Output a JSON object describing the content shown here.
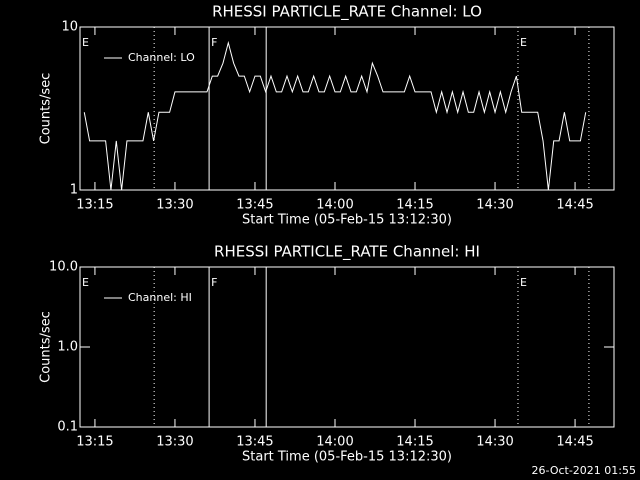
{
  "chart_data": [
    {
      "type": "line",
      "title": "RHESSI PARTICLE_RATE Channel: LO",
      "xlabel": "Start Time (05-Feb-15 13:12:30)",
      "ylabel": "Counts/sec",
      "log_y": true,
      "ylim": [
        1,
        10
      ],
      "yticks": [
        1,
        10
      ],
      "xlim": [
        792.2,
        892.3
      ],
      "xticks": [
        {
          "value": 795,
          "label": "13:15"
        },
        {
          "value": 810,
          "label": "13:30"
        },
        {
          "value": 825,
          "label": "13:45"
        },
        {
          "value": 840,
          "label": "14:00"
        },
        {
          "value": 855,
          "label": "14:15"
        },
        {
          "value": 870,
          "label": "14:30"
        },
        {
          "value": 885,
          "label": "14:45"
        }
      ],
      "legend": "upper left",
      "vlines": [
        {
          "x": 806.1,
          "style": "dotted"
        },
        {
          "x": 816.4,
          "style": "solid"
        },
        {
          "x": 827.1,
          "style": "solid"
        },
        {
          "x": 874.3,
          "style": "dotted"
        },
        {
          "x": 887.6,
          "style": "dotted"
        }
      ],
      "annotations": [
        {
          "text": "E",
          "x": 792.2
        },
        {
          "text": "F",
          "x": 816.4
        },
        {
          "text": "E",
          "x": 874.3
        }
      ],
      "series": [
        {
          "name": "Channel: LO",
          "color": "#ffffff",
          "x": [
            793,
            794,
            795,
            796,
            797,
            798,
            799,
            800,
            801,
            802,
            803,
            804,
            805,
            806,
            807,
            808,
            809,
            810,
            811,
            812,
            813,
            814,
            815,
            816,
            817,
            818,
            819,
            820,
            821,
            822,
            823,
            824,
            825,
            826,
            827,
            828,
            829,
            830,
            831,
            832,
            833,
            834,
            835,
            836,
            837,
            838,
            839,
            840,
            841,
            842,
            843,
            844,
            845,
            846,
            847,
            848,
            849,
            850,
            851,
            852,
            853,
            854,
            855,
            856,
            857,
            858,
            859,
            860,
            861,
            862,
            863,
            864,
            865,
            866,
            867,
            868,
            869,
            870,
            871,
            872,
            873,
            874,
            875,
            876,
            877,
            878,
            879,
            880,
            881,
            882,
            883,
            884,
            885,
            886,
            887
          ],
          "values": [
            3,
            2,
            2,
            2,
            2,
            1,
            2,
            1,
            2,
            2,
            2,
            2,
            3,
            2,
            3,
            3,
            3,
            4,
            4,
            4,
            4,
            4,
            4,
            4,
            5,
            5,
            6,
            8,
            6,
            5,
            5,
            4,
            5,
            5,
            4,
            5,
            4,
            4,
            5,
            4,
            5,
            4,
            4,
            5,
            4,
            4,
            5,
            4,
            4,
            5,
            4,
            4,
            5,
            4,
            6,
            5,
            4,
            4,
            4,
            4,
            4,
            5,
            4,
            4,
            4,
            4,
            3,
            4,
            3,
            4,
            3,
            4,
            3,
            3,
            4,
            3,
            4,
            3,
            4,
            3,
            4,
            5,
            3,
            3,
            3,
            3,
            2,
            1,
            2,
            2,
            3,
            2,
            2,
            2,
            3
          ]
        }
      ]
    },
    {
      "type": "line",
      "title": "RHESSI PARTICLE_RATE Channel: HI",
      "xlabel": "Start Time (05-Feb-15 13:12:30)",
      "ylabel": "Counts/sec",
      "log_y": true,
      "ylim": [
        0.1,
        10
      ],
      "yticks": [
        {
          "value": 0.1,
          "label": "0.1"
        },
        {
          "value": 1,
          "label": "1.0"
        },
        {
          "value": 10,
          "label": "10.0"
        }
      ],
      "xlim": [
        792.2,
        892.3
      ],
      "xticks": [
        {
          "value": 795,
          "label": "13:15"
        },
        {
          "value": 810,
          "label": "13:30"
        },
        {
          "value": 825,
          "label": "13:45"
        },
        {
          "value": 840,
          "label": "14:00"
        },
        {
          "value": 855,
          "label": "14:15"
        },
        {
          "value": 870,
          "label": "14:30"
        },
        {
          "value": 885,
          "label": "14:45"
        }
      ],
      "legend": "upper left",
      "vlines": [
        {
          "x": 806.1,
          "style": "dotted"
        },
        {
          "x": 816.4,
          "style": "solid"
        },
        {
          "x": 827.1,
          "style": "solid"
        },
        {
          "x": 874.3,
          "style": "dotted"
        },
        {
          "x": 887.6,
          "style": "dotted"
        }
      ],
      "annotations": [
        {
          "text": "E",
          "x": 792.2
        },
        {
          "text": "F",
          "x": 816.4
        },
        {
          "text": "E",
          "x": 874.3
        }
      ],
      "series": [
        {
          "name": "Channel: HI",
          "color": "#ffffff",
          "x": [],
          "values": []
        }
      ]
    }
  ],
  "footer": "26-Oct-2021 01:55"
}
